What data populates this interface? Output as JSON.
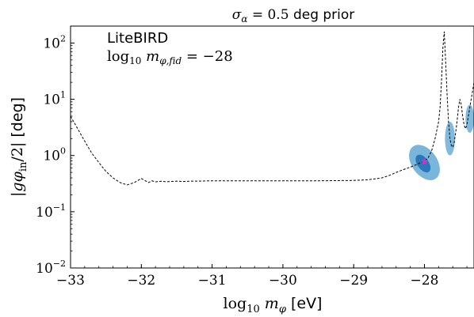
{
  "chart_data": {
    "type": "line",
    "title": "σα = 0.5 deg prior",
    "xlabel": "log10 mφ [eV]",
    "ylabel": "|gφin/2| [deg]",
    "xlim": [
      -33,
      -27.3
    ],
    "ylim": [
      0.01,
      200
    ],
    "yscale": "log",
    "grid": false,
    "x_ticks": [
      -33,
      -32,
      -31,
      -30,
      -29,
      -28
    ],
    "x_tick_labels": [
      "−33",
      "−32",
      "−31",
      "−30",
      "−29",
      "−28"
    ],
    "y_ticks": [
      0.01,
      0.1,
      1,
      10,
      100
    ],
    "y_tick_labels": [
      {
        "base": "10",
        "exp": "−2"
      },
      {
        "base": "10",
        "exp": "−1"
      },
      {
        "base": "10",
        "exp": "0"
      },
      {
        "base": "10",
        "exp": "1"
      },
      {
        "base": "10",
        "exp": "2"
      }
    ],
    "annotations": {
      "experiment": "LiteBIRD",
      "fiducial_prefix": "log",
      "fiducial_sub": "10",
      "fiducial_mass": "m",
      "fiducial_mass_sub": "φ,fid",
      "fiducial_value": "= −28"
    },
    "fiducial_point": {
      "x": -28.0,
      "y": 0.78,
      "color": "#cc33cc"
    },
    "colors": {
      "sensitivity_curve": "#000000",
      "posterior_outer": "#6baed6",
      "posterior_inner": "#2171b5"
    },
    "series": [
      {
        "style": "dashed",
        "x": [
          -33.0,
          -32.9,
          -32.8,
          -32.7,
          -32.6,
          -32.5,
          -32.4,
          -32.3,
          -32.2,
          -32.1,
          -32.0,
          -31.95,
          -31.9,
          -31.85,
          -31.8,
          -31.75,
          -31.7,
          -31.65,
          -31.6,
          -31.5,
          -31.4,
          -31.3,
          -31.2,
          -31.0,
          -30.5,
          -30.0,
          -29.5,
          -29.0,
          -28.8,
          -28.6,
          -28.5,
          -28.4,
          -28.3,
          -28.2,
          -28.1,
          -28.0,
          -27.95,
          -27.9,
          -27.85,
          -27.8,
          -27.78,
          -27.76,
          -27.74,
          -27.72,
          -27.7,
          -27.68,
          -27.66,
          -27.64,
          -27.62,
          -27.6,
          -27.58,
          -27.56,
          -27.54,
          -27.52,
          -27.5,
          -27.48,
          -27.46,
          -27.44,
          -27.42,
          -27.4,
          -27.38,
          -27.36,
          -27.34,
          -27.32,
          -27.3
        ],
        "y": [
          5.0,
          3.0,
          1.8,
          1.1,
          0.75,
          0.52,
          0.4,
          0.33,
          0.3,
          0.33,
          0.39,
          0.36,
          0.33,
          0.355,
          0.34,
          0.345,
          0.35,
          0.34,
          0.345,
          0.35,
          0.345,
          0.35,
          0.35,
          0.355,
          0.355,
          0.355,
          0.355,
          0.36,
          0.37,
          0.4,
          0.44,
          0.5,
          0.56,
          0.62,
          0.7,
          0.8,
          0.9,
          1.2,
          2.0,
          4.0,
          7.0,
          20.0,
          80.0,
          160.0,
          45.0,
          12.0,
          4.0,
          2.0,
          1.5,
          1.4,
          1.7,
          2.5,
          4.0,
          7.0,
          10.0,
          8.0,
          5.0,
          3.5,
          3.0,
          3.5,
          5.0,
          7.0,
          10.0,
          14.0,
          20.0
        ]
      }
    ]
  }
}
